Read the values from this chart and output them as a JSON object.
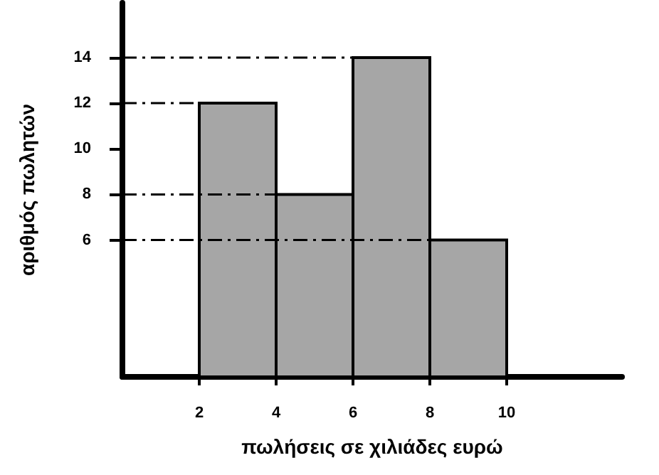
{
  "chart_data": {
    "type": "histogram",
    "xlabel": "πωλήσεις σε χιλιάδες ευρώ",
    "ylabel": "αριθμός πωλητών",
    "bins": [
      2,
      4,
      6,
      8,
      10
    ],
    "values": [
      12,
      8,
      14,
      6
    ],
    "color": "#a6a6a6",
    "xlim": [
      0,
      13
    ],
    "xticks": [
      2,
      4,
      6,
      8,
      10
    ],
    "ylim": [
      0,
      16.4
    ],
    "yticks": [
      6,
      8,
      10,
      12,
      14
    ],
    "grid": false,
    "ref_lines": [
      {
        "axis": "y",
        "value": 6,
        "line_style": "dashed"
      },
      {
        "axis": "y",
        "value": 8,
        "line_style": "dashed"
      },
      {
        "axis": "y",
        "value": 12,
        "line_style": "dashed"
      },
      {
        "axis": "y",
        "value": 14,
        "line_style": "dashed"
      }
    ]
  }
}
